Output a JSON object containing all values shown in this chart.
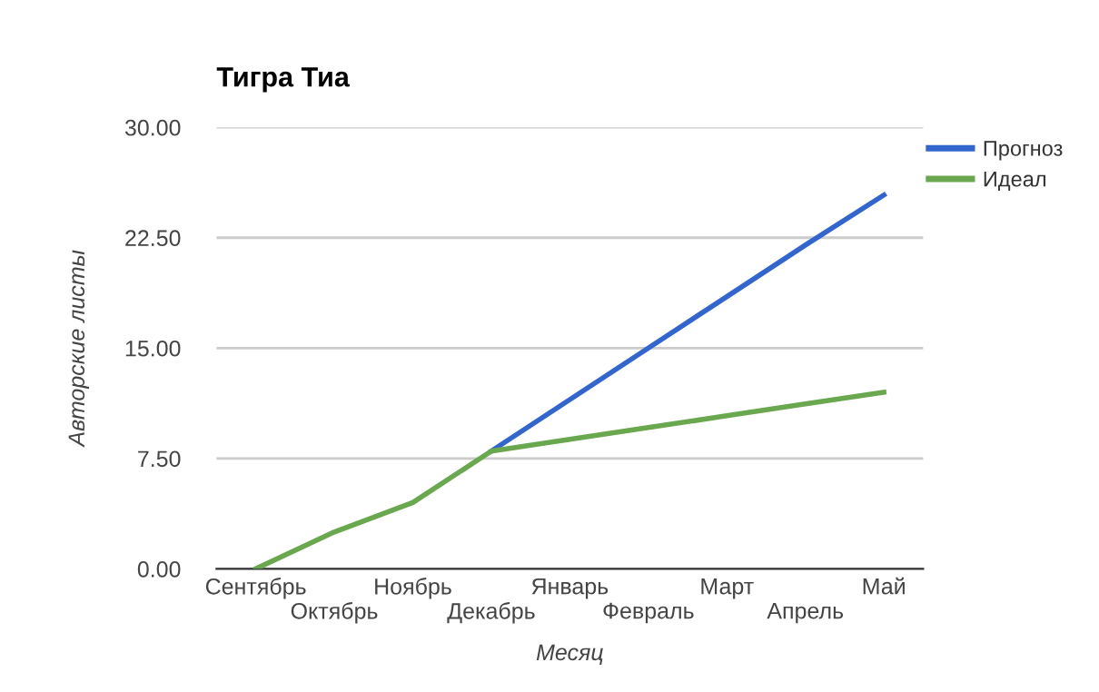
{
  "chart_data": {
    "type": "line",
    "title": "Тигра Тиа",
    "xlabel": "Месяц",
    "ylabel": "Авторские листы",
    "categories": [
      "Сентябрь",
      "Октябрь",
      "Ноябрь",
      "Декабрь",
      "Январь",
      "Февраль",
      "Март",
      "Апрель",
      "Май"
    ],
    "series": [
      {
        "name": "Прогноз",
        "color": "#3366cc",
        "values": [
          null,
          null,
          null,
          8,
          11.5,
          15,
          18.5,
          22,
          25.4
        ]
      },
      {
        "name": "Идеал",
        "color": "#6aa84f",
        "values": [
          0,
          2.5,
          4.5,
          8,
          8.8,
          9.6,
          10.4,
          11.2,
          12
        ]
      }
    ],
    "ylim": [
      0,
      30
    ],
    "yticks": [
      {
        "value": 0,
        "label": "0.00"
      },
      {
        "value": 7.5,
        "label": "7.50"
      },
      {
        "value": 15,
        "label": "15.00"
      },
      {
        "value": 22.5,
        "label": "22.50"
      },
      {
        "value": 30,
        "label": "30.00"
      }
    ],
    "grid": "y",
    "legend": "top right",
    "marker": "none",
    "line_style": "solid"
  }
}
